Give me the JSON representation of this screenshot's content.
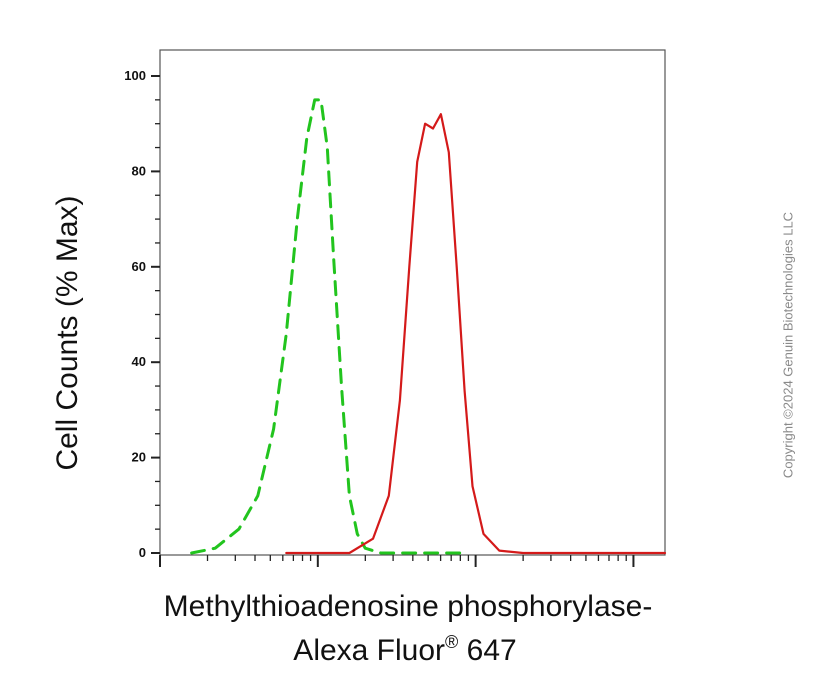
{
  "chart_data": {
    "type": "line",
    "title": "",
    "xlabel_line1": "Methylthioadenosine phosphorylase-",
    "xlabel_line2_prefix": "Alexa Fluor",
    "xlabel_line2_sup": "®",
    "xlabel_line2_suffix": " 647",
    "ylabel": "Cell Counts (% Max)",
    "ylim": [
      0,
      100
    ],
    "y_ticks": [
      "0",
      "20",
      "40",
      "60",
      "80",
      "100"
    ],
    "x_scale": "log",
    "x_range_decades": [
      0,
      3.2
    ],
    "grid": false,
    "legend": "none",
    "series": [
      {
        "style": "dashed",
        "color": "#22c41e",
        "x": [
          0.2,
          0.35,
          0.5,
          0.62,
          0.72,
          0.8,
          0.87,
          0.93,
          0.98,
          1.02,
          1.06,
          1.1,
          1.15,
          1.2,
          1.25,
          1.3,
          1.4,
          1.6,
          1.9
        ],
        "y": [
          0,
          1,
          5,
          12,
          26,
          46,
          70,
          87,
          95,
          95,
          85,
          62,
          35,
          12,
          4,
          1,
          0,
          0,
          0
        ]
      },
      {
        "style": "solid",
        "color": "#d41a1a",
        "x": [
          0.8,
          1.2,
          1.35,
          1.45,
          1.52,
          1.58,
          1.63,
          1.68,
          1.73,
          1.78,
          1.83,
          1.88,
          1.93,
          1.98,
          2.05,
          2.15,
          2.3,
          3.2
        ],
        "y": [
          0,
          0,
          3,
          12,
          32,
          60,
          82,
          90,
          89,
          92,
          84,
          60,
          34,
          14,
          4,
          0.5,
          0,
          0
        ]
      }
    ]
  },
  "copyright": "Copyright ©2024 Genuin Biotechnologies LLC"
}
